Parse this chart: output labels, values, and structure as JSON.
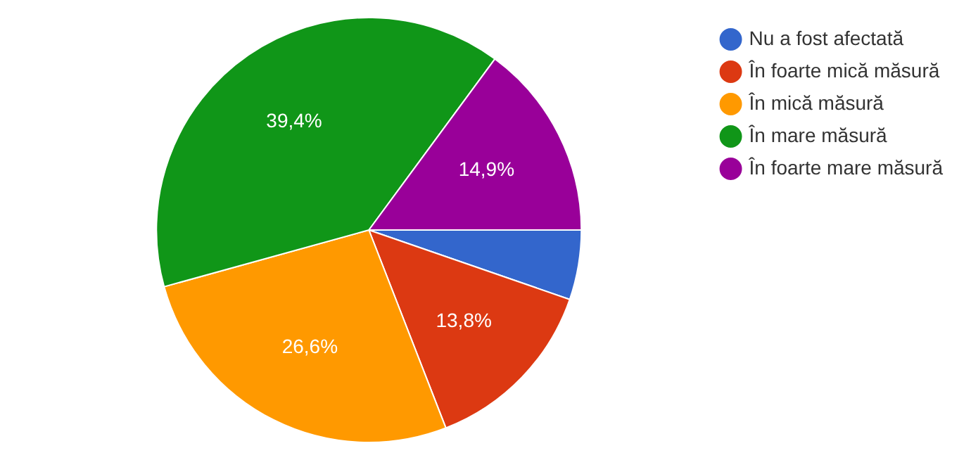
{
  "chart_data": {
    "type": "pie",
    "categories": [
      "Nu a fost afectată",
      "În foarte mică măsură",
      "În mică măsură",
      "În mare măsură",
      "În foarte mare măsură"
    ],
    "values": [
      5.3,
      13.8,
      26.6,
      39.4,
      14.9
    ],
    "colors": [
      "#3366cc",
      "#dc3912",
      "#ff9900",
      "#109618",
      "#990099"
    ],
    "value_labels": [
      null,
      "13,8%",
      "26,6%",
      "39,4%",
      "14,9%"
    ],
    "legend": "right"
  }
}
